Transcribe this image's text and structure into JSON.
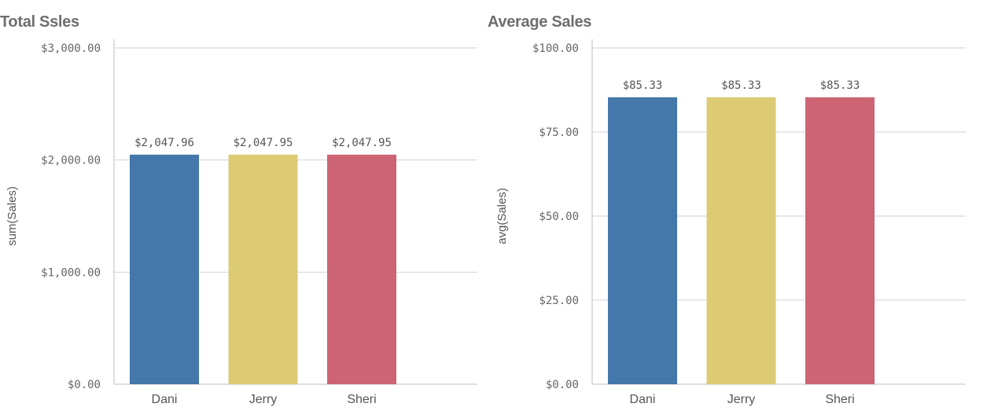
{
  "chart_data": [
    {
      "type": "bar",
      "title": "Total Ssles",
      "xlabel": "",
      "ylabel": "sum(Sales)",
      "categories": [
        "Dani",
        "Jerry",
        "Sheri"
      ],
      "values": [
        2047.96,
        2047.95,
        2047.95
      ],
      "data_labels": [
        "$2,047.96",
        "$2,047.95",
        "$2,047.95"
      ],
      "ylim": [
        0,
        3000
      ],
      "y_ticks": [
        0,
        1000,
        2000,
        3000
      ],
      "y_tick_labels": [
        "$0.00",
        "$1,000.00",
        "$2,000.00",
        "$3,000.00"
      ],
      "grid": true,
      "colors": [
        "#4477aa",
        "#dccb74",
        "#cc6474"
      ]
    },
    {
      "type": "bar",
      "title": "Average Sales",
      "xlabel": "",
      "ylabel": "avg(Sales)",
      "categories": [
        "Dani",
        "Jerry",
        "Sheri"
      ],
      "values": [
        85.33,
        85.33,
        85.33
      ],
      "data_labels": [
        "$85.33",
        "$85.33",
        "$85.33"
      ],
      "ylim": [
        0,
        100
      ],
      "y_ticks": [
        0,
        25,
        50,
        75,
        100
      ],
      "y_tick_labels": [
        "$0.00",
        "$25.00",
        "$50.00",
        "$75.00",
        "$100.00"
      ],
      "grid": true,
      "colors": [
        "#4477aa",
        "#dccb74",
        "#cc6474"
      ]
    }
  ]
}
